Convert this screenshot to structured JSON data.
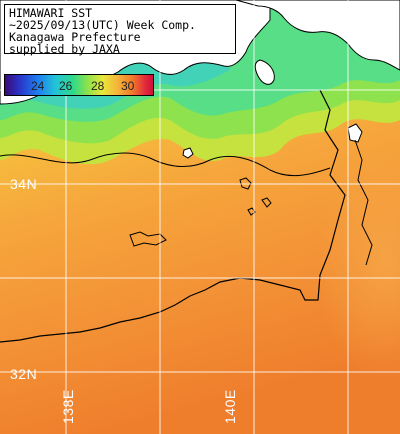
{
  "title": {
    "line1": "HIMAWARI SST",
    "line2": "~2025/09/13(UTC) Week Comp.",
    "line3": "Kanagawa Prefecture",
    "line4": "supplied by JAXA"
  },
  "colorbar": {
    "ticks": [
      "24",
      "26",
      "28",
      "30"
    ]
  },
  "grid": {
    "lat_labels": [
      "34N",
      "32N"
    ],
    "lon_labels": [
      "138E",
      "140E"
    ]
  },
  "colors": {
    "land": "#ffffff",
    "coast": "#000000",
    "grid": "#ffffff",
    "sea_cool": "#7ee25a",
    "sea_mid": "#f6c83c",
    "sea_warm": "#f08a2a"
  }
}
